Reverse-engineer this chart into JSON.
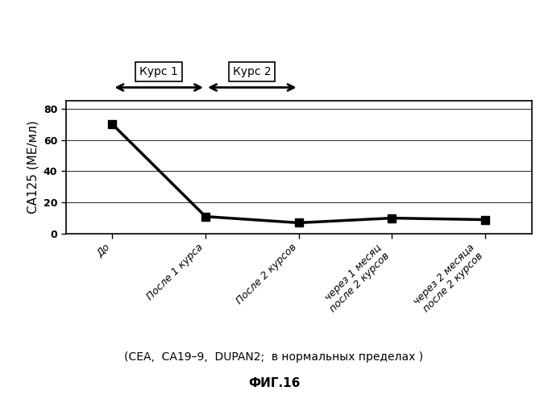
{
  "x_values": [
    0,
    1,
    2,
    3,
    4
  ],
  "y_values": [
    70,
    11,
    7,
    10,
    9
  ],
  "x_tick_labels": [
    "До",
    "После 1 курса",
    "После 2 курсов",
    "через 1 месяц\nпосле 2 курсов",
    "через 2 месяца\nпосле 2 курсов"
  ],
  "ylabel": "СА125 (МЕ/мл)",
  "ylim": [
    0,
    85
  ],
  "yticks": [
    0,
    20,
    40,
    60,
    80
  ],
  "line_color": "#000000",
  "marker": "s",
  "marker_size": 7,
  "line_width": 2.5,
  "course1_label": "Курс 1",
  "course2_label": "Курс 2",
  "subtitle_bold": "(CEA,  CA19-9,  DUPAN2;",
  "subtitle_normal": " в нормальных пределах )",
  "figure_label": "ФИГ.16",
  "background_color": "#ffffff",
  "tick_fontsize": 9,
  "ylabel_fontsize": 11,
  "x_min": -0.5,
  "x_max": 4.5
}
